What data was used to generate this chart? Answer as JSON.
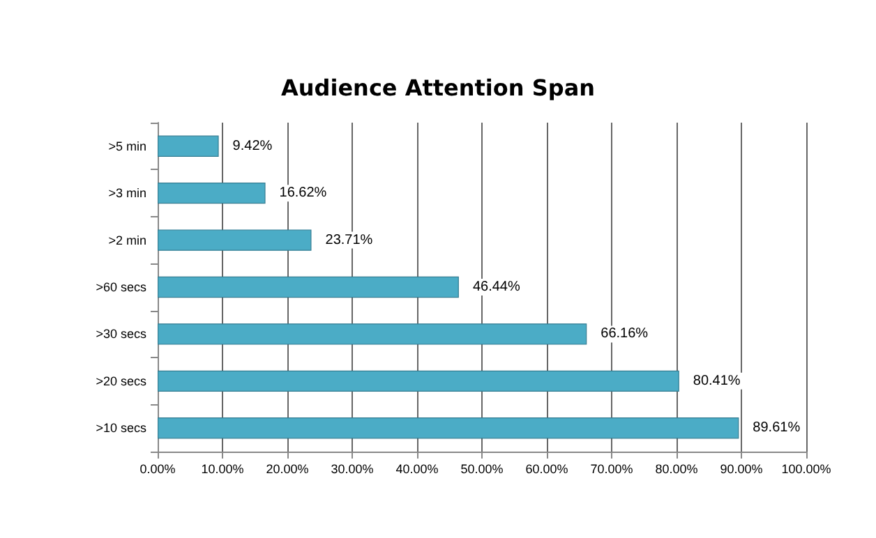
{
  "chart_data": {
    "type": "bar",
    "orientation": "horizontal",
    "title": "Audience Attention Span",
    "categories": [
      ">5 min",
      ">3 min",
      ">2 min",
      ">60 secs",
      ">30 secs",
      ">20 secs",
      ">10 secs"
    ],
    "values": [
      9.42,
      16.62,
      23.71,
      46.44,
      66.16,
      80.41,
      89.61
    ],
    "value_labels": [
      "9.42%",
      "16.62%",
      "23.71%",
      "46.44%",
      "66.16%",
      "80.41%",
      "89.61%"
    ],
    "color": "#4bacc6",
    "xlim": [
      0,
      100
    ],
    "xticks": [
      {
        "value": 0,
        "label": "0.00%"
      },
      {
        "value": 10,
        "label": "10.00%"
      },
      {
        "value": 20,
        "label": "20.00%"
      },
      {
        "value": 30,
        "label": "30.00%"
      },
      {
        "value": 40,
        "label": "40.00%"
      },
      {
        "value": 50,
        "label": "50.00%"
      },
      {
        "value": 60,
        "label": "60.00%"
      },
      {
        "value": 70,
        "label": "70.00%"
      },
      {
        "value": 80,
        "label": "80.00%"
      },
      {
        "value": 90,
        "label": "90.00%"
      },
      {
        "value": 100,
        "label": "100.00%"
      }
    ],
    "grid": "x"
  }
}
